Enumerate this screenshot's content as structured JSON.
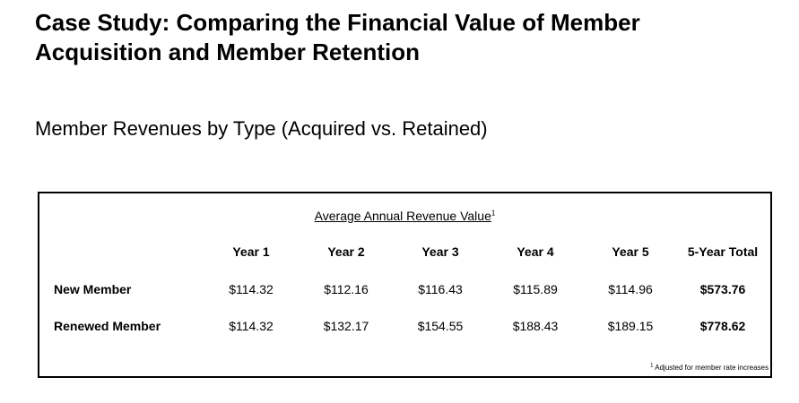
{
  "title": "Case Study: Comparing the Financial Value of Member Acquisition and Member Retention",
  "subtitle": "Member Revenues by Type (Acquired vs. Retained)",
  "table": {
    "heading": "Average Annual Revenue Value",
    "heading_marker": "1",
    "columns": [
      "Year 1",
      "Year 2",
      "Year 3",
      "Year 4",
      "Year 5",
      "5-Year Total"
    ],
    "rows": [
      {
        "label": "New Member",
        "values": [
          "$114.32",
          "$112.16",
          "$116.43",
          "$115.89",
          "$114.96",
          "$573.76"
        ]
      },
      {
        "label": "Renewed Member",
        "values": [
          "$114.32",
          "$132.17",
          "$154.55",
          "$188.43",
          "$189.15",
          "$778.62"
        ]
      }
    ],
    "footnote_marker": "1",
    "footnote": "Adjusted for member rate increases"
  }
}
